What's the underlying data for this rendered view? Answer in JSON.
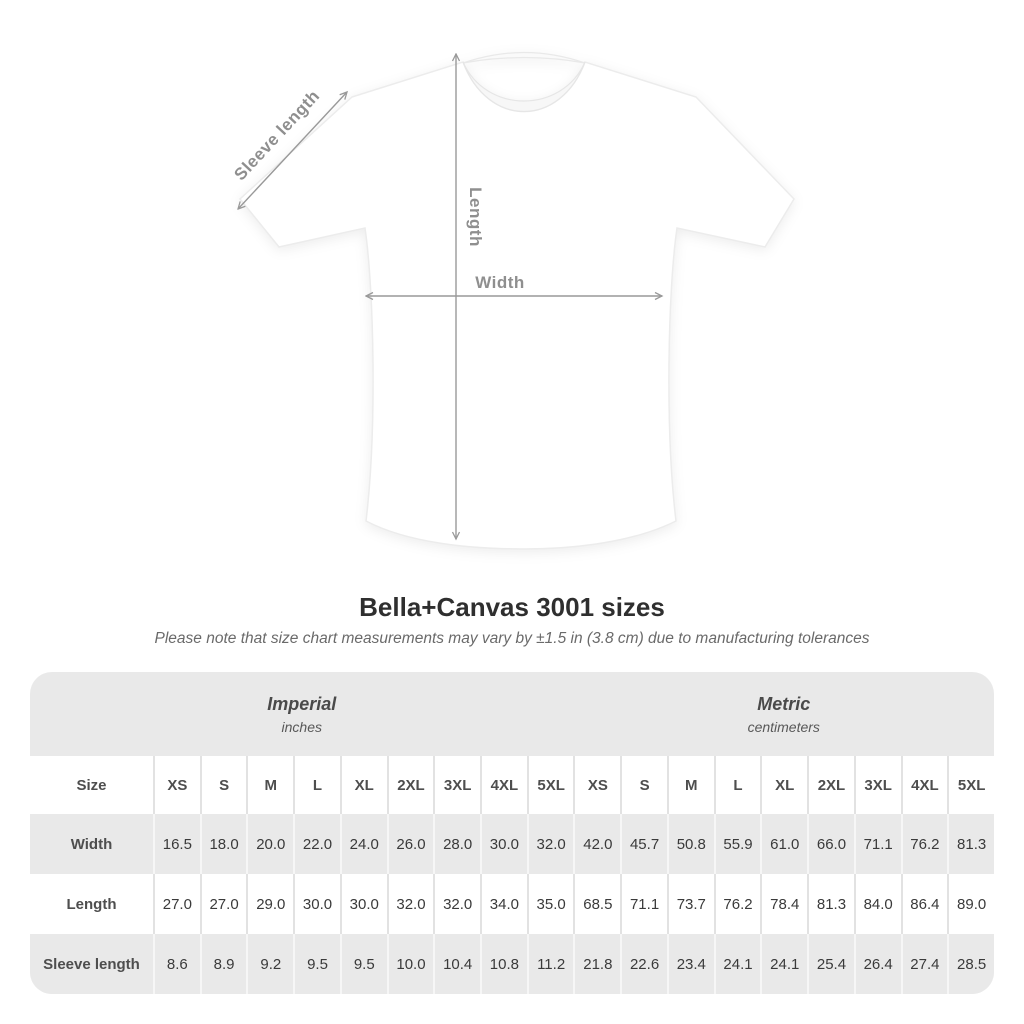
{
  "diagram": {
    "labels": {
      "sleeve": "Sleeve length",
      "length": "Length",
      "width": "Width"
    },
    "line_color": "#999999"
  },
  "header": {
    "title": "Bella+Canvas 3001 sizes",
    "subtitle": "Please note that size chart measurements may vary by ±1.5 in (3.8 cm) due to manufacturing tolerances"
  },
  "table": {
    "size_header": "Size",
    "sizes": [
      "XS",
      "S",
      "M",
      "L",
      "XL",
      "2XL",
      "3XL",
      "4XL",
      "5XL"
    ],
    "groups": [
      {
        "label": "Imperial",
        "unit": "inches"
      },
      {
        "label": "Metric",
        "unit": "centimeters"
      }
    ],
    "rows": [
      {
        "key": "width",
        "label": "Width",
        "imperial": [
          "16.5",
          "18.0",
          "20.0",
          "22.0",
          "24.0",
          "26.0",
          "28.0",
          "30.0",
          "32.0"
        ],
        "metric": [
          "42.0",
          "45.7",
          "50.8",
          "55.9",
          "61.0",
          "66.0",
          "71.1",
          "76.2",
          "81.3"
        ]
      },
      {
        "key": "length",
        "label": "Length",
        "imperial": [
          "27.0",
          "27.0",
          "29.0",
          "30.0",
          "30.0",
          "32.0",
          "32.0",
          "34.0",
          "35.0"
        ],
        "metric": [
          "68.5",
          "71.1",
          "73.7",
          "76.2",
          "78.4",
          "81.3",
          "84.0",
          "86.4",
          "89.0"
        ]
      },
      {
        "key": "sleeve-length",
        "label": "Sleeve length",
        "imperial": [
          "8.6",
          "8.9",
          "9.2",
          "9.5",
          "9.5",
          "10.0",
          "10.4",
          "10.8",
          "11.2"
        ],
        "metric": [
          "21.8",
          "22.6",
          "23.4",
          "24.1",
          "24.1",
          "25.4",
          "26.4",
          "27.4",
          "28.5"
        ]
      }
    ]
  },
  "chart_data": {
    "type": "table",
    "title": "Bella+Canvas 3001 sizes",
    "note": "Please note that size chart measurements may vary by ±1.5 in (3.8 cm) due to manufacturing tolerances",
    "column_groups": [
      "Imperial (inches)",
      "Metric (centimeters)"
    ],
    "sizes": [
      "XS",
      "S",
      "M",
      "L",
      "XL",
      "2XL",
      "3XL",
      "4XL",
      "5XL"
    ],
    "rows": [
      {
        "measurement": "Width",
        "imperial_in": [
          16.5,
          18.0,
          20.0,
          22.0,
          24.0,
          26.0,
          28.0,
          30.0,
          32.0
        ],
        "metric_cm": [
          42.0,
          45.7,
          50.8,
          55.9,
          61.0,
          66.0,
          71.1,
          76.2,
          81.3
        ]
      },
      {
        "measurement": "Length",
        "imperial_in": [
          27.0,
          27.0,
          29.0,
          30.0,
          30.0,
          32.0,
          32.0,
          34.0,
          35.0
        ],
        "metric_cm": [
          68.5,
          71.1,
          73.7,
          76.2,
          78.4,
          81.3,
          84.0,
          86.4,
          89.0
        ]
      },
      {
        "measurement": "Sleeve length",
        "imperial_in": [
          8.6,
          8.9,
          9.2,
          9.5,
          9.5,
          10.0,
          10.4,
          10.8,
          11.2
        ],
        "metric_cm": [
          21.8,
          22.6,
          23.4,
          24.1,
          24.1,
          25.4,
          26.4,
          27.4,
          28.5
        ]
      }
    ]
  }
}
